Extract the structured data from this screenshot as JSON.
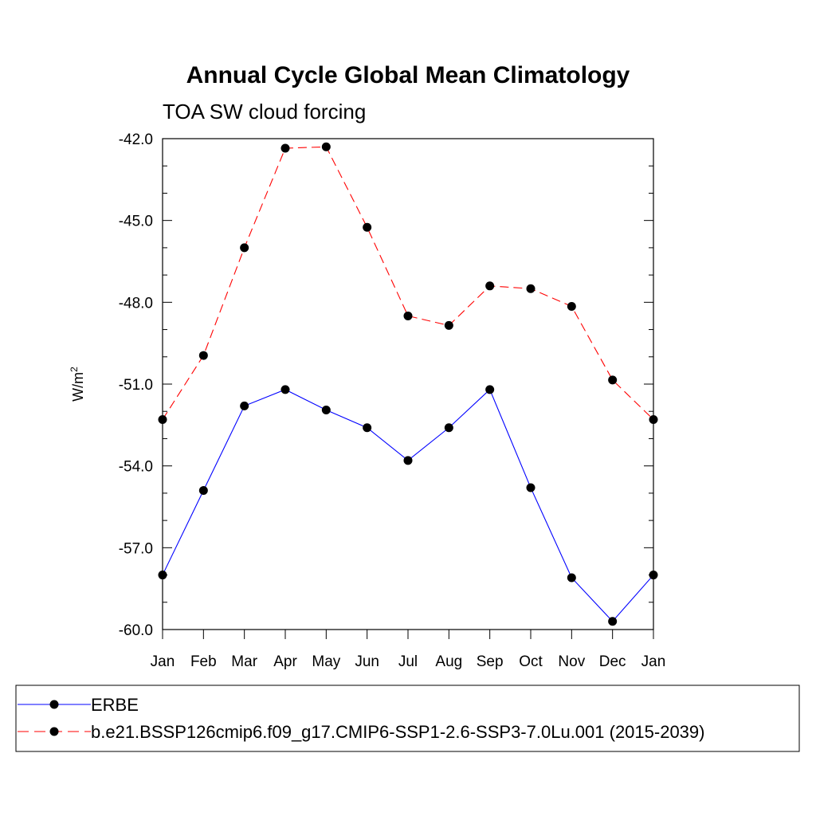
{
  "chart_data": {
    "type": "line",
    "title": "Annual Cycle Global Mean Climatology",
    "subtitle": "TOA SW cloud forcing",
    "ylabel": "W/m",
    "ylabel_superscript": "2",
    "categories": [
      "Jan",
      "Feb",
      "Mar",
      "Apr",
      "May",
      "Jun",
      "Jul",
      "Aug",
      "Sep",
      "Oct",
      "Nov",
      "Dec",
      "Jan"
    ],
    "ylim": [
      -60.0,
      -42.0
    ],
    "yticks": [
      "-42.0",
      "-45.0",
      "-48.0",
      "-51.0",
      "-54.0",
      "-57.0",
      "-60.0"
    ],
    "grid": false,
    "legend_position": "bottom",
    "series": [
      {
        "name": "ERBE",
        "color": "#0000ff",
        "line_style": "solid",
        "marker": "filled-circle",
        "values": [
          -58.0,
          -54.9,
          -51.8,
          -51.2,
          -51.95,
          -52.6,
          -53.8,
          -52.6,
          -51.2,
          -54.8,
          -58.1,
          -59.7,
          -58.0
        ]
      },
      {
        "name": "b.e21.BSSP126cmip6.f09_g17.CMIP6-SSP1-2.6-SSP3-7.0Lu.001 (2015-2039)",
        "color": "#ff0000",
        "line_style": "dashed",
        "marker": "filled-circle",
        "values": [
          -52.3,
          -49.95,
          -46.0,
          -42.35,
          -42.3,
          -45.25,
          -48.5,
          -48.85,
          -47.4,
          -47.5,
          -48.15,
          -50.85,
          -52.3
        ]
      }
    ]
  }
}
